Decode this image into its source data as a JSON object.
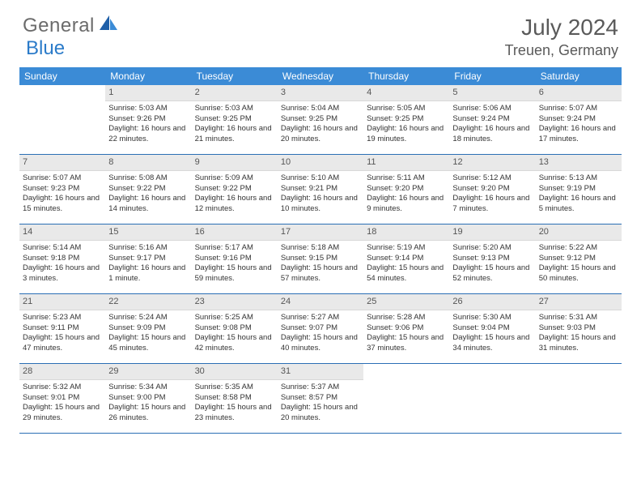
{
  "logo": {
    "text1": "General",
    "text2": "Blue"
  },
  "title": "July 2024",
  "location": "Treuen, Germany",
  "colors": {
    "header_bg": "#3b8bd6",
    "header_text": "#ffffff",
    "border": "#2b6fb5",
    "daynum_bg": "#e9e9e9",
    "text": "#333333",
    "logo_gray": "#6b6b6b",
    "logo_blue": "#2b7bc9"
  },
  "day_headers": [
    "Sunday",
    "Monday",
    "Tuesday",
    "Wednesday",
    "Thursday",
    "Friday",
    "Saturday"
  ],
  "weeks": [
    [
      {
        "day": "",
        "sunrise": "",
        "sunset": "",
        "daylight": ""
      },
      {
        "day": "1",
        "sunrise": "Sunrise: 5:03 AM",
        "sunset": "Sunset: 9:26 PM",
        "daylight": "Daylight: 16 hours and 22 minutes."
      },
      {
        "day": "2",
        "sunrise": "Sunrise: 5:03 AM",
        "sunset": "Sunset: 9:25 PM",
        "daylight": "Daylight: 16 hours and 21 minutes."
      },
      {
        "day": "3",
        "sunrise": "Sunrise: 5:04 AM",
        "sunset": "Sunset: 9:25 PM",
        "daylight": "Daylight: 16 hours and 20 minutes."
      },
      {
        "day": "4",
        "sunrise": "Sunrise: 5:05 AM",
        "sunset": "Sunset: 9:25 PM",
        "daylight": "Daylight: 16 hours and 19 minutes."
      },
      {
        "day": "5",
        "sunrise": "Sunrise: 5:06 AM",
        "sunset": "Sunset: 9:24 PM",
        "daylight": "Daylight: 16 hours and 18 minutes."
      },
      {
        "day": "6",
        "sunrise": "Sunrise: 5:07 AM",
        "sunset": "Sunset: 9:24 PM",
        "daylight": "Daylight: 16 hours and 17 minutes."
      }
    ],
    [
      {
        "day": "7",
        "sunrise": "Sunrise: 5:07 AM",
        "sunset": "Sunset: 9:23 PM",
        "daylight": "Daylight: 16 hours and 15 minutes."
      },
      {
        "day": "8",
        "sunrise": "Sunrise: 5:08 AM",
        "sunset": "Sunset: 9:22 PM",
        "daylight": "Daylight: 16 hours and 14 minutes."
      },
      {
        "day": "9",
        "sunrise": "Sunrise: 5:09 AM",
        "sunset": "Sunset: 9:22 PM",
        "daylight": "Daylight: 16 hours and 12 minutes."
      },
      {
        "day": "10",
        "sunrise": "Sunrise: 5:10 AM",
        "sunset": "Sunset: 9:21 PM",
        "daylight": "Daylight: 16 hours and 10 minutes."
      },
      {
        "day": "11",
        "sunrise": "Sunrise: 5:11 AM",
        "sunset": "Sunset: 9:20 PM",
        "daylight": "Daylight: 16 hours and 9 minutes."
      },
      {
        "day": "12",
        "sunrise": "Sunrise: 5:12 AM",
        "sunset": "Sunset: 9:20 PM",
        "daylight": "Daylight: 16 hours and 7 minutes."
      },
      {
        "day": "13",
        "sunrise": "Sunrise: 5:13 AM",
        "sunset": "Sunset: 9:19 PM",
        "daylight": "Daylight: 16 hours and 5 minutes."
      }
    ],
    [
      {
        "day": "14",
        "sunrise": "Sunrise: 5:14 AM",
        "sunset": "Sunset: 9:18 PM",
        "daylight": "Daylight: 16 hours and 3 minutes."
      },
      {
        "day": "15",
        "sunrise": "Sunrise: 5:16 AM",
        "sunset": "Sunset: 9:17 PM",
        "daylight": "Daylight: 16 hours and 1 minute."
      },
      {
        "day": "16",
        "sunrise": "Sunrise: 5:17 AM",
        "sunset": "Sunset: 9:16 PM",
        "daylight": "Daylight: 15 hours and 59 minutes."
      },
      {
        "day": "17",
        "sunrise": "Sunrise: 5:18 AM",
        "sunset": "Sunset: 9:15 PM",
        "daylight": "Daylight: 15 hours and 57 minutes."
      },
      {
        "day": "18",
        "sunrise": "Sunrise: 5:19 AM",
        "sunset": "Sunset: 9:14 PM",
        "daylight": "Daylight: 15 hours and 54 minutes."
      },
      {
        "day": "19",
        "sunrise": "Sunrise: 5:20 AM",
        "sunset": "Sunset: 9:13 PM",
        "daylight": "Daylight: 15 hours and 52 minutes."
      },
      {
        "day": "20",
        "sunrise": "Sunrise: 5:22 AM",
        "sunset": "Sunset: 9:12 PM",
        "daylight": "Daylight: 15 hours and 50 minutes."
      }
    ],
    [
      {
        "day": "21",
        "sunrise": "Sunrise: 5:23 AM",
        "sunset": "Sunset: 9:11 PM",
        "daylight": "Daylight: 15 hours and 47 minutes."
      },
      {
        "day": "22",
        "sunrise": "Sunrise: 5:24 AM",
        "sunset": "Sunset: 9:09 PM",
        "daylight": "Daylight: 15 hours and 45 minutes."
      },
      {
        "day": "23",
        "sunrise": "Sunrise: 5:25 AM",
        "sunset": "Sunset: 9:08 PM",
        "daylight": "Daylight: 15 hours and 42 minutes."
      },
      {
        "day": "24",
        "sunrise": "Sunrise: 5:27 AM",
        "sunset": "Sunset: 9:07 PM",
        "daylight": "Daylight: 15 hours and 40 minutes."
      },
      {
        "day": "25",
        "sunrise": "Sunrise: 5:28 AM",
        "sunset": "Sunset: 9:06 PM",
        "daylight": "Daylight: 15 hours and 37 minutes."
      },
      {
        "day": "26",
        "sunrise": "Sunrise: 5:30 AM",
        "sunset": "Sunset: 9:04 PM",
        "daylight": "Daylight: 15 hours and 34 minutes."
      },
      {
        "day": "27",
        "sunrise": "Sunrise: 5:31 AM",
        "sunset": "Sunset: 9:03 PM",
        "daylight": "Daylight: 15 hours and 31 minutes."
      }
    ],
    [
      {
        "day": "28",
        "sunrise": "Sunrise: 5:32 AM",
        "sunset": "Sunset: 9:01 PM",
        "daylight": "Daylight: 15 hours and 29 minutes."
      },
      {
        "day": "29",
        "sunrise": "Sunrise: 5:34 AM",
        "sunset": "Sunset: 9:00 PM",
        "daylight": "Daylight: 15 hours and 26 minutes."
      },
      {
        "day": "30",
        "sunrise": "Sunrise: 5:35 AM",
        "sunset": "Sunset: 8:58 PM",
        "daylight": "Daylight: 15 hours and 23 minutes."
      },
      {
        "day": "31",
        "sunrise": "Sunrise: 5:37 AM",
        "sunset": "Sunset: 8:57 PM",
        "daylight": "Daylight: 15 hours and 20 minutes."
      },
      {
        "day": "",
        "sunrise": "",
        "sunset": "",
        "daylight": ""
      },
      {
        "day": "",
        "sunrise": "",
        "sunset": "",
        "daylight": ""
      },
      {
        "day": "",
        "sunrise": "",
        "sunset": "",
        "daylight": ""
      }
    ]
  ]
}
